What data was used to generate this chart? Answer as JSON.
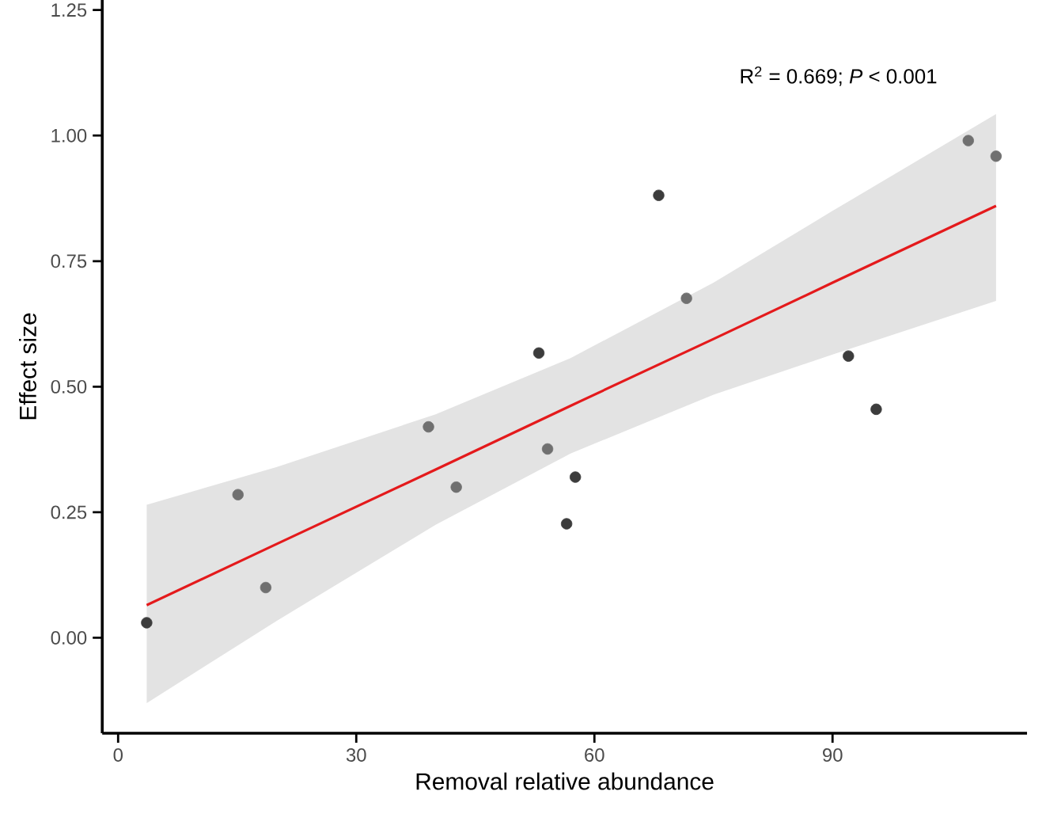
{
  "chart_data": {
    "type": "scatter",
    "xlabel": "Removal relative abundance",
    "ylabel": "Effect size",
    "annotations": [
      "R$^{2}$ = 0.669; *P* < 0.001"
    ],
    "xlim": [
      -2,
      114.5
    ],
    "ylim": [
      -0.19,
      1.27
    ],
    "xticks": [
      0,
      30,
      60,
      90
    ],
    "yticks": [
      {
        "value": 0,
        "label": "0.00"
      },
      {
        "value": 0.25,
        "label": "0.25"
      },
      {
        "value": 0.5,
        "label": "0.50"
      },
      {
        "value": 0.75,
        "label": "0.75"
      },
      {
        "value": 1,
        "label": "1.00"
      },
      {
        "value": 1.25,
        "label": "1.25"
      }
    ],
    "grid": false,
    "marker": "circle",
    "series": [
      {
        "type": "line",
        "marker": "none",
        "color": "#e41a1c",
        "x": [
          3.6,
          20,
          40,
          57,
          75,
          90,
          110.6
        ],
        "values": [
          0.065,
          0.187,
          0.335,
          0.462,
          0.595,
          0.707,
          0.86
        ],
        "lower": [
          -0.13,
          0.034,
          0.225,
          0.367,
          0.484,
          0.564,
          0.671
        ],
        "upper": [
          0.265,
          0.34,
          0.445,
          0.557,
          0.707,
          0.85,
          1.043
        ]
      },
      {
        "color": "#707070",
        "x": [
          15.1,
          18.6,
          39.1,
          42.6,
          54.1,
          71.6,
          107.1,
          110.6
        ],
        "values": [
          0.285,
          0.1,
          0.42,
          0.3,
          0.376,
          0.676,
          0.99,
          0.959
        ]
      },
      {
        "color": "#3c3c3c",
        "x": [
          3.6,
          53.0,
          56.5,
          57.6,
          68.1,
          92.0,
          95.5
        ],
        "values": [
          0.03,
          0.567,
          0.227,
          0.32,
          0.881,
          0.561,
          0.455
        ]
      }
    ]
  }
}
